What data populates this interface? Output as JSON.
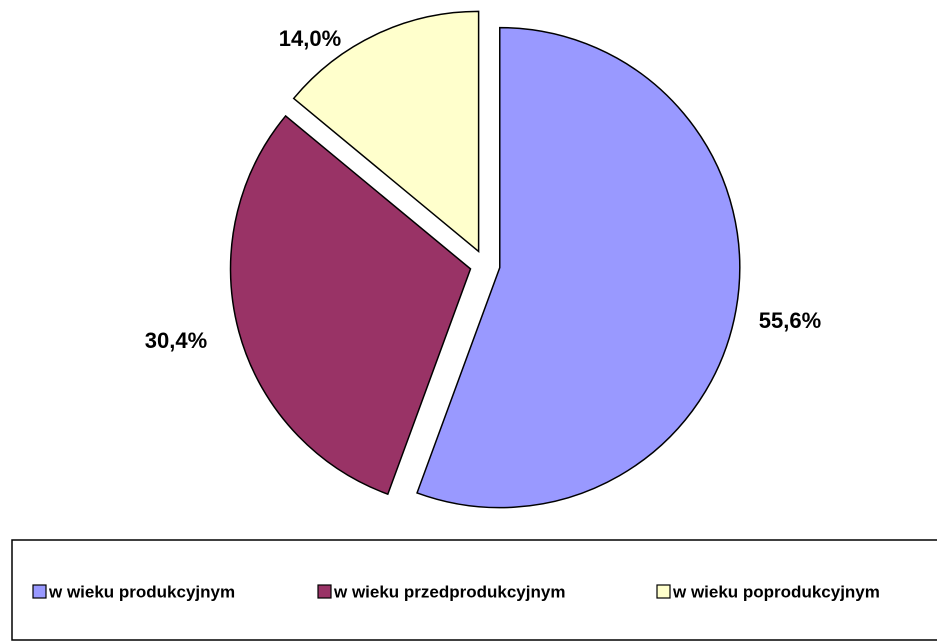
{
  "chart_data": {
    "type": "pie",
    "categories": [
      "w wieku produkcyjnym",
      "w wieku przedprodukcyjnym",
      "w wieku poprodukcyjnym"
    ],
    "values": [
      55.6,
      30.4,
      14.0
    ],
    "value_labels": [
      "55,6%",
      "30,4%",
      "14,0%"
    ],
    "colors": [
      "#9999ff",
      "#993366",
      "#ffffcc"
    ],
    "legend": "bottom"
  }
}
